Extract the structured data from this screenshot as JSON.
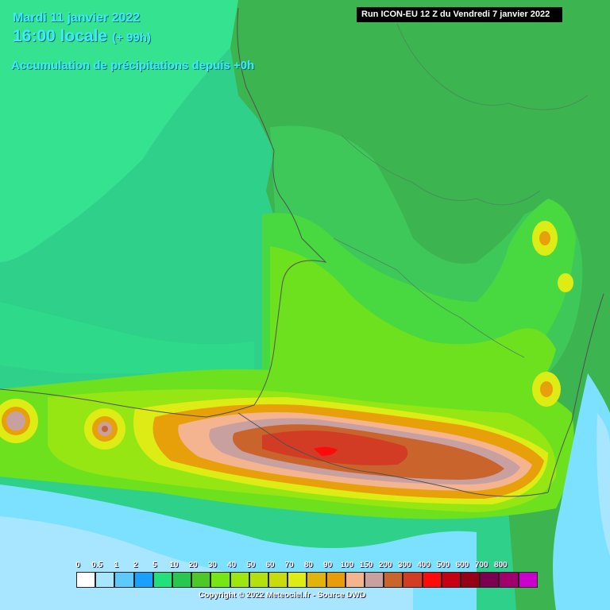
{
  "header": {
    "date": "Mardi 11 janvier 2022",
    "time": "16:00 locale",
    "offset": "(+ 99h)",
    "product": "Accumulation de précipitations depuis +0h"
  },
  "run": "Run ICON-EU 12 Z du Vendredi 7 janvier 2022",
  "legend": {
    "labels": [
      "0",
      "0.5",
      "1",
      "2",
      "5",
      "10",
      "20",
      "30",
      "40",
      "50",
      "60",
      "70",
      "80",
      "90",
      "100",
      "150",
      "200",
      "300",
      "400",
      "500",
      "600",
      "700",
      "800"
    ],
    "colors": [
      "#ffffff",
      "#a8e6ff",
      "#5ccaff",
      "#1aa0ff",
      "#22e07a",
      "#28c850",
      "#4ec828",
      "#78e614",
      "#9ee60e",
      "#b4e00e",
      "#c8dc0c",
      "#dcec14",
      "#e0b40c",
      "#e89c0a",
      "#f4b490",
      "#c8a0a0",
      "#c8642c",
      "#d23c24",
      "#ff0a0a",
      "#c80014",
      "#960014",
      "#7c0050",
      "#a0006e",
      "#cc00cc"
    ]
  },
  "copyright": "Copyright © 2022 Meteociel.fr - Source DWD",
  "map": {
    "colors": {
      "sea": "#2fd08a",
      "sea_light": "#46e88a",
      "land": "#3cb450",
      "band_5": "#3cc85a",
      "band_20": "#46d840",
      "band_30": "#6ee11e",
      "band_40": "#96e614",
      "band_60": "#c8dc0c",
      "band_80": "#e8a00a",
      "band_100": "#f4b490",
      "band_150": "#c8a0a0",
      "band_200": "#c8642c",
      "band_300": "#d23c24",
      "band_400": "#ff0a0a",
      "low_precip": "#7ce0ff",
      "low_precip2": "#a8e6ff",
      "border": "#505050"
    }
  }
}
